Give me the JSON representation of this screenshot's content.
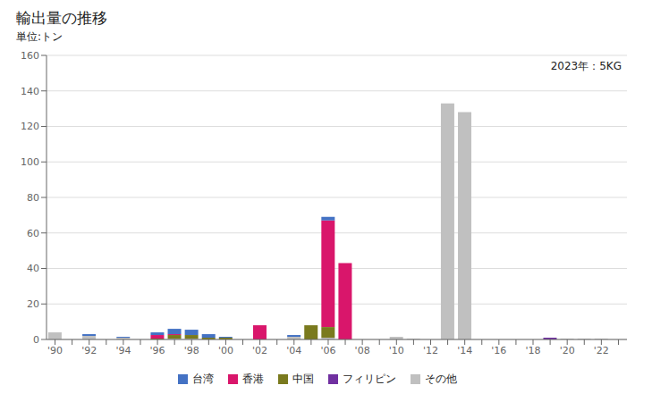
{
  "chart_data": {
    "type": "bar",
    "title": "輸出量の推移",
    "subtitle": "単位:トン",
    "annotation": "2023年：5KG",
    "stacked": true,
    "grid": true,
    "categories": [
      "'90",
      null,
      "'92",
      null,
      "'94",
      null,
      "'96",
      null,
      "'98",
      null,
      "'00",
      null,
      "'02",
      null,
      "'04",
      null,
      "'06",
      null,
      "'08",
      null,
      "'10",
      null,
      "'12",
      null,
      "'14",
      null,
      "'16",
      null,
      "'18",
      null,
      "'20",
      null,
      "'22",
      null
    ],
    "series": [
      {
        "name": "台湾",
        "color": "#4472c4",
        "values": [
          0,
          0,
          1,
          0,
          0.5,
          0,
          1.5,
          3,
          3,
          2,
          0.5,
          0,
          0,
          0,
          1,
          0,
          2,
          0,
          0,
          0,
          0,
          0,
          0,
          0,
          0,
          0,
          0,
          0,
          0,
          0,
          0,
          0,
          0,
          0
        ]
      },
      {
        "name": "香港",
        "color": "#d9166b",
        "values": [
          0,
          0,
          0,
          0,
          0,
          0,
          2,
          0.5,
          0,
          0,
          0,
          0,
          8,
          0,
          0,
          0,
          60,
          43,
          0,
          0,
          0,
          0,
          0,
          0,
          0,
          0,
          0,
          0,
          0,
          0,
          0,
          0,
          0,
          0
        ]
      },
      {
        "name": "中国",
        "color": "#7a7a1e",
        "values": [
          0,
          0,
          0,
          0,
          0,
          0,
          0.5,
          2,
          2,
          1,
          1,
          0,
          0,
          0,
          0,
          8,
          6,
          0,
          0,
          0,
          0,
          0,
          0,
          0,
          0,
          0,
          0,
          0,
          0,
          0,
          0,
          0,
          0,
          0
        ]
      },
      {
        "name": "フィリピン",
        "color": "#7030a0",
        "values": [
          0,
          0,
          0,
          0,
          0,
          0,
          0,
          0,
          0,
          0,
          0,
          0,
          0,
          0,
          0,
          0,
          0,
          0,
          0,
          0,
          0,
          0,
          0,
          0,
          0,
          0,
          0,
          0,
          0,
          1,
          0,
          0,
          0,
          0
        ]
      },
      {
        "name": "その他",
        "color": "#c0c0c0",
        "values": [
          4,
          0,
          2,
          0,
          1,
          0,
          0,
          0.5,
          0.5,
          0,
          0,
          0,
          0,
          0,
          1.5,
          0,
          1,
          0,
          0,
          0,
          1.5,
          0.5,
          0,
          133,
          128,
          0,
          0,
          0,
          0,
          0,
          0.5,
          0.5,
          0.5,
          0
        ]
      }
    ],
    "ylim": [
      0,
      160
    ],
    "yticks": [
      0,
      20,
      40,
      60,
      80,
      100,
      120,
      140,
      160
    ]
  }
}
